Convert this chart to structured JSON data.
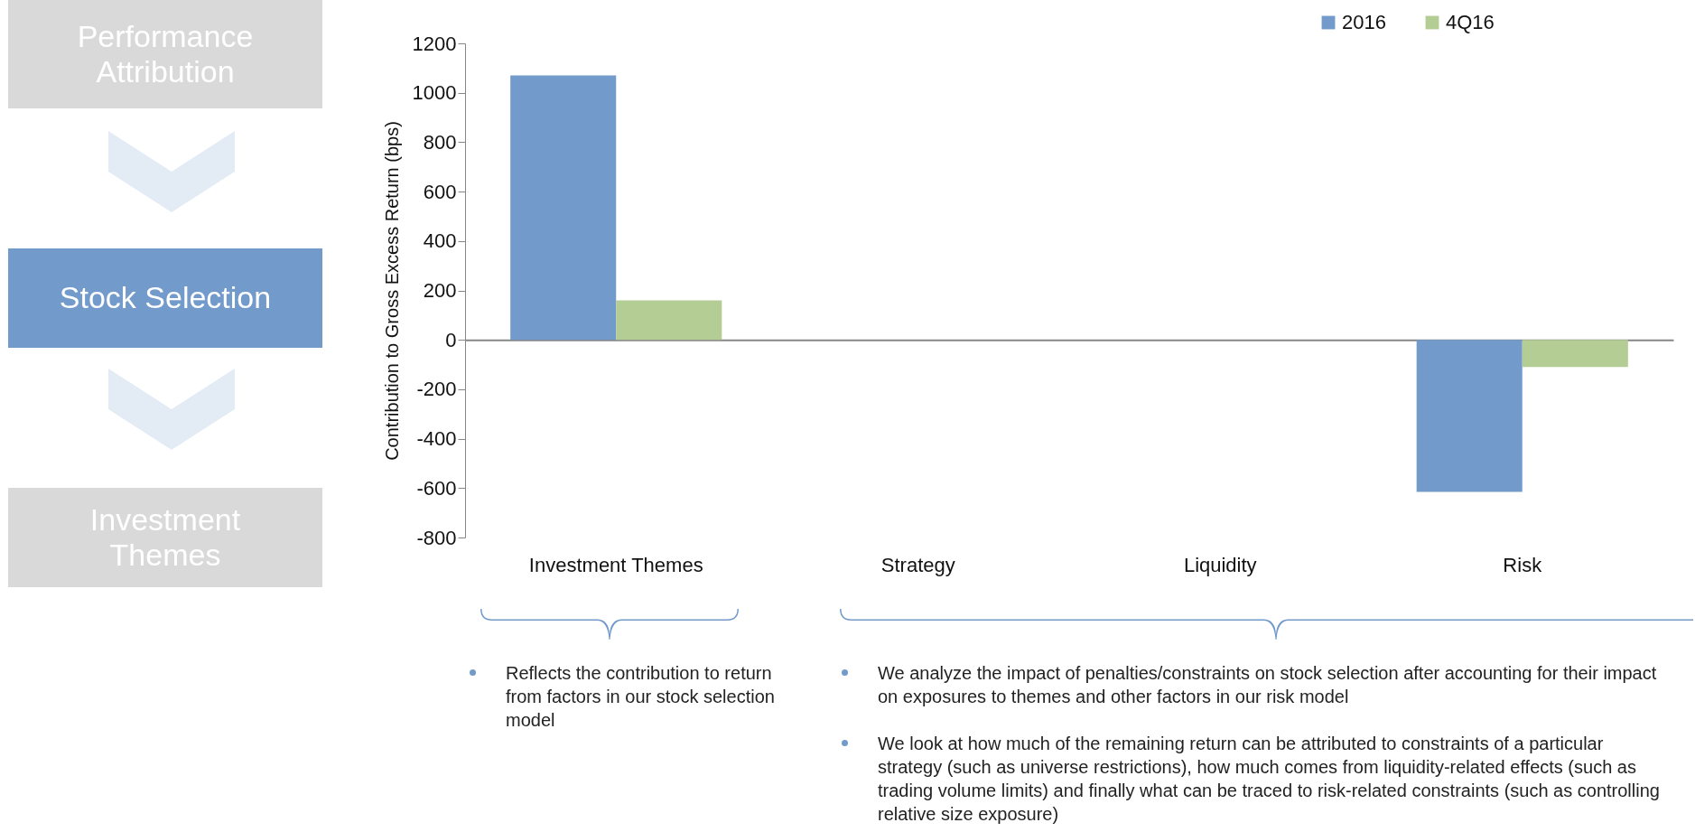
{
  "chart_data": {
    "type": "bar",
    "ylabel": "Contribution to Gross Excess Return (bps)",
    "categories": [
      "Investment Themes",
      "Strategy",
      "Liquidity",
      "Risk"
    ],
    "series": [
      {
        "name": "2016",
        "color": "#729aca",
        "values": [
          1070,
          0,
          0,
          -615
        ]
      },
      {
        "name": "4Q16",
        "color": "#b3cd94",
        "values": [
          160,
          0,
          0,
          -110
        ]
      }
    ],
    "ylim": [
      -800,
      1200
    ],
    "yticks": [
      -800,
      -600,
      -400,
      -200,
      0,
      200,
      400,
      600,
      800,
      1000,
      1200
    ],
    "legend": "top right",
    "annotations": [
      "Performance Attribution",
      "Stock Selection",
      "Investment Themes",
      "Reflects the contribution to return from factors in our stock selection model",
      "We analyze the impact of penalties/constraints on stock selection after accounting for their impact on exposures to themes and other factors in our risk model",
      "We look at how much of the remaining return can be attributed to constraints of a particular strategy (such as universe restrictions), how much comes from liquidity-related effects (such as trading volume limits) and finally what can be traced to risk-related constraints (such as controlling relative size exposure)"
    ]
  }
}
